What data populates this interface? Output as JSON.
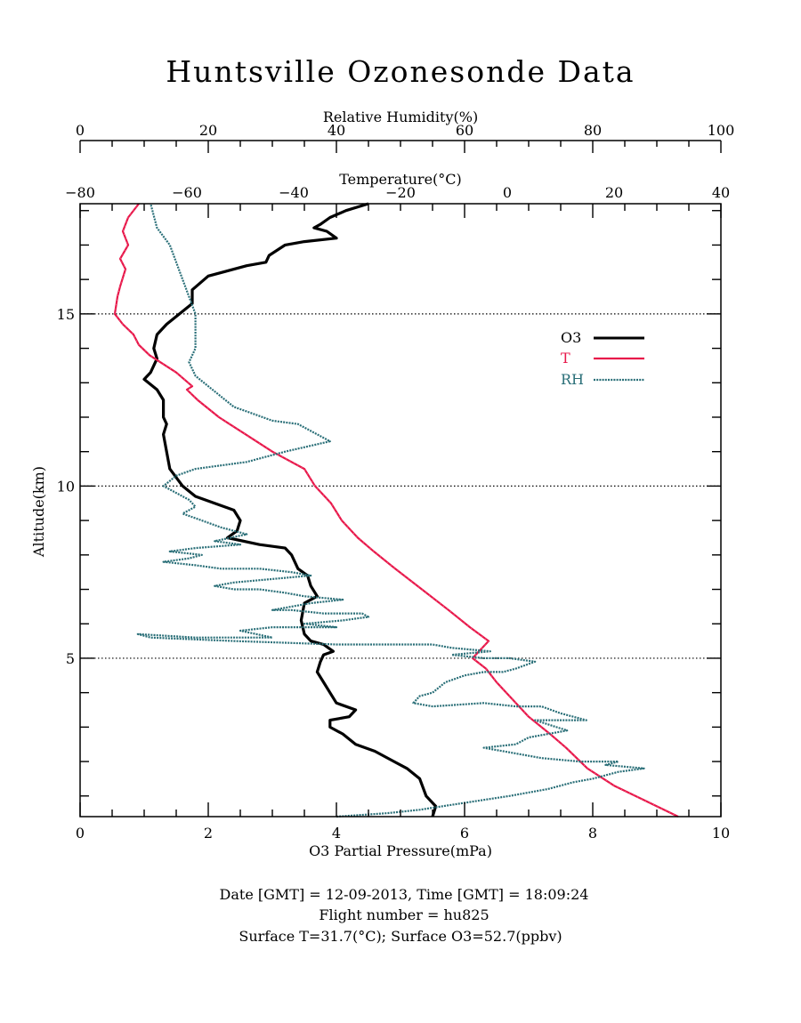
{
  "chart_data": {
    "type": "line",
    "title": "Huntsville Ozonesonde Data",
    "xlabel_bottom": "O3 Partial Pressure(mPa)",
    "xlabel_top_rh": "Relative Humidity(%)",
    "xlabel_top_temp": "Temperature(°C)",
    "ylabel": "Altitude(km)",
    "xlim_o3": [
      0,
      10
    ],
    "xlim_rh": [
      0,
      100
    ],
    "xlim_temp": [
      -80,
      40
    ],
    "ylim": [
      0.4,
      18.2
    ],
    "o3_ticks": [
      "0",
      "2",
      "4",
      "6",
      "8",
      "10"
    ],
    "rh_ticks": [
      "0",
      "20",
      "40",
      "60",
      "80",
      "100"
    ],
    "temp_ticks": [
      "−80",
      "−60",
      "−40",
      "−20",
      "0",
      "20",
      "40"
    ],
    "alt_ticks": [
      "5",
      "10",
      "15"
    ],
    "reference_lines_km": [
      5,
      10,
      15
    ],
    "legend_position": "upper-right",
    "colors": {
      "O3": "#000000",
      "T": "#e8174a",
      "RH": "#2a6f78"
    },
    "series": [
      {
        "name": "O3",
        "units": "mPa",
        "style": "solid",
        "points": [
          [
            5.5,
            0.4
          ],
          [
            5.55,
            0.7
          ],
          [
            5.4,
            1.0
          ],
          [
            5.3,
            1.5
          ],
          [
            5.1,
            1.8
          ],
          [
            4.9,
            2.0
          ],
          [
            4.6,
            2.3
          ],
          [
            4.3,
            2.5
          ],
          [
            4.1,
            2.8
          ],
          [
            3.9,
            3.0
          ],
          [
            3.9,
            3.2
          ],
          [
            4.2,
            3.3
          ],
          [
            4.3,
            3.5
          ],
          [
            4.0,
            3.7
          ],
          [
            3.9,
            4.0
          ],
          [
            3.8,
            4.3
          ],
          [
            3.7,
            4.6
          ],
          [
            3.75,
            4.9
          ],
          [
            3.8,
            5.1
          ],
          [
            3.95,
            5.2
          ],
          [
            3.8,
            5.4
          ],
          [
            3.6,
            5.5
          ],
          [
            3.5,
            5.7
          ],
          [
            3.45,
            6.1
          ],
          [
            3.5,
            6.6
          ],
          [
            3.7,
            6.8
          ],
          [
            3.6,
            7.1
          ],
          [
            3.55,
            7.4
          ],
          [
            3.4,
            7.6
          ],
          [
            3.3,
            8.0
          ],
          [
            3.2,
            8.2
          ],
          [
            2.8,
            8.3
          ],
          [
            2.3,
            8.5
          ],
          [
            2.45,
            8.7
          ],
          [
            2.5,
            9.0
          ],
          [
            2.4,
            9.3
          ],
          [
            2.1,
            9.5
          ],
          [
            1.8,
            9.7
          ],
          [
            1.6,
            10.0
          ],
          [
            1.4,
            10.5
          ],
          [
            1.35,
            11.0
          ],
          [
            1.3,
            11.5
          ],
          [
            1.35,
            11.8
          ],
          [
            1.3,
            12.0
          ],
          [
            1.3,
            12.5
          ],
          [
            1.2,
            12.8
          ],
          [
            1.0,
            13.1
          ],
          [
            1.1,
            13.3
          ],
          [
            1.2,
            13.7
          ],
          [
            1.15,
            14.0
          ],
          [
            1.2,
            14.4
          ],
          [
            1.35,
            14.7
          ],
          [
            1.55,
            15.0
          ],
          [
            1.75,
            15.3
          ],
          [
            1.75,
            15.7
          ],
          [
            2.0,
            16.1
          ],
          [
            2.6,
            16.4
          ],
          [
            2.9,
            16.5
          ],
          [
            2.95,
            16.7
          ],
          [
            3.2,
            17.0
          ],
          [
            3.5,
            17.1
          ],
          [
            4.0,
            17.2
          ],
          [
            3.85,
            17.4
          ],
          [
            3.65,
            17.5
          ],
          [
            3.75,
            17.6
          ],
          [
            3.9,
            17.8
          ],
          [
            4.15,
            18.0
          ],
          [
            4.5,
            18.2
          ]
        ]
      },
      {
        "name": "T",
        "units": "°C",
        "style": "solid",
        "points": [
          [
            32,
            0.4
          ],
          [
            28,
            0.7
          ],
          [
            20,
            1.3
          ],
          [
            15,
            1.8
          ],
          [
            11,
            2.4
          ],
          [
            8,
            2.8
          ],
          [
            4,
            3.3
          ],
          [
            1,
            3.8
          ],
          [
            -2,
            4.3
          ],
          [
            -4,
            4.7
          ],
          [
            -6.5,
            5.0
          ],
          [
            -3.5,
            5.5
          ],
          [
            -7,
            5.9
          ],
          [
            -11,
            6.4
          ],
          [
            -16,
            7.0
          ],
          [
            -21,
            7.6
          ],
          [
            -25,
            8.1
          ],
          [
            -28,
            8.5
          ],
          [
            -31,
            9.0
          ],
          [
            -33,
            9.5
          ],
          [
            -36,
            10.0
          ],
          [
            -38,
            10.5
          ],
          [
            -44,
            11.0
          ],
          [
            -49,
            11.5
          ],
          [
            -54,
            12.0
          ],
          [
            -58,
            12.5
          ],
          [
            -60,
            12.8
          ],
          [
            -59,
            12.9
          ],
          [
            -62,
            13.3
          ],
          [
            -67,
            13.8
          ],
          [
            -69,
            14.1
          ],
          [
            -70,
            14.4
          ],
          [
            -72,
            14.7
          ],
          [
            -73.5,
            15.0
          ],
          [
            -73,
            15.5
          ],
          [
            -72.5,
            15.8
          ],
          [
            -71.5,
            16.3
          ],
          [
            -72.5,
            16.6
          ],
          [
            -71,
            17.0
          ],
          [
            -72,
            17.4
          ],
          [
            -71,
            17.8
          ],
          [
            -69,
            18.2
          ]
        ]
      },
      {
        "name": "RH",
        "units": "%",
        "style": "dotted",
        "points": [
          [
            40,
            0.4
          ],
          [
            48,
            0.5
          ],
          [
            53,
            0.6
          ],
          [
            60,
            0.8
          ],
          [
            67,
            1.0
          ],
          [
            73,
            1.2
          ],
          [
            77,
            1.4
          ],
          [
            80,
            1.5
          ],
          [
            84,
            1.7
          ],
          [
            88,
            1.8
          ],
          [
            82,
            1.9
          ],
          [
            84,
            2.0
          ],
          [
            78,
            2.0
          ],
          [
            72,
            2.1
          ],
          [
            69,
            2.2
          ],
          [
            63,
            2.4
          ],
          [
            68,
            2.5
          ],
          [
            70,
            2.7
          ],
          [
            76,
            2.9
          ],
          [
            71,
            3.2
          ],
          [
            79,
            3.2
          ],
          [
            75,
            3.4
          ],
          [
            72,
            3.6
          ],
          [
            68,
            3.6
          ],
          [
            63,
            3.7
          ],
          [
            55,
            3.6
          ],
          [
            52,
            3.7
          ],
          [
            53,
            3.9
          ],
          [
            55,
            4.0
          ],
          [
            57,
            4.3
          ],
          [
            60,
            4.5
          ],
          [
            63,
            4.6
          ],
          [
            66,
            4.6
          ],
          [
            68,
            4.7
          ],
          [
            71,
            4.9
          ],
          [
            67,
            5.0
          ],
          [
            63,
            5.0
          ],
          [
            58,
            5.1
          ],
          [
            64,
            5.2
          ],
          [
            58,
            5.3
          ],
          [
            55,
            5.4
          ],
          [
            40,
            5.4
          ],
          [
            24,
            5.5
          ],
          [
            11,
            5.6
          ],
          [
            9,
            5.7
          ],
          [
            18,
            5.6
          ],
          [
            30,
            5.6
          ],
          [
            25,
            5.8
          ],
          [
            30,
            5.9
          ],
          [
            40,
            5.9
          ],
          [
            35,
            6.0
          ],
          [
            41,
            6.1
          ],
          [
            45,
            6.2
          ],
          [
            44,
            6.3
          ],
          [
            38,
            6.3
          ],
          [
            33,
            6.4
          ],
          [
            30,
            6.4
          ],
          [
            36,
            6.6
          ],
          [
            41,
            6.7
          ],
          [
            35,
            6.8
          ],
          [
            32,
            6.9
          ],
          [
            28,
            7.0
          ],
          [
            24,
            7.0
          ],
          [
            21,
            7.1
          ],
          [
            24,
            7.2
          ],
          [
            30,
            7.3
          ],
          [
            36,
            7.4
          ],
          [
            33,
            7.5
          ],
          [
            28,
            7.6
          ],
          [
            22,
            7.6
          ],
          [
            18,
            7.7
          ],
          [
            13,
            7.8
          ],
          [
            17,
            7.9
          ],
          [
            19,
            8.0
          ],
          [
            14,
            8.1
          ],
          [
            18,
            8.2
          ],
          [
            25,
            8.3
          ],
          [
            21,
            8.4
          ],
          [
            26,
            8.6
          ],
          [
            22,
            8.8
          ],
          [
            19,
            9.0
          ],
          [
            16,
            9.2
          ],
          [
            18,
            9.4
          ],
          [
            17,
            9.6
          ],
          [
            15,
            9.8
          ],
          [
            13,
            10.0
          ],
          [
            15,
            10.3
          ],
          [
            18,
            10.5
          ],
          [
            26,
            10.7
          ],
          [
            32,
            11.0
          ],
          [
            39,
            11.3
          ],
          [
            37,
            11.5
          ],
          [
            34,
            11.8
          ],
          [
            30,
            11.9
          ],
          [
            27,
            12.1
          ],
          [
            24,
            12.3
          ],
          [
            22,
            12.6
          ],
          [
            20,
            12.9
          ],
          [
            18,
            13.2
          ],
          [
            17,
            13.6
          ],
          [
            18,
            14.0
          ],
          [
            18,
            14.5
          ],
          [
            18,
            15.0
          ],
          [
            17,
            15.5
          ],
          [
            16,
            16.0
          ],
          [
            15,
            16.5
          ],
          [
            14,
            17.0
          ],
          [
            12,
            17.5
          ],
          [
            11,
            18.2
          ]
        ]
      }
    ],
    "footer_lines": [
      "Date [GMT] = 12-09-2013,  Time [GMT] = 18:09:24",
      "Flight number = hu825",
      "Surface T=31.7(°C); Surface O3=52.7(ppbv)"
    ]
  }
}
